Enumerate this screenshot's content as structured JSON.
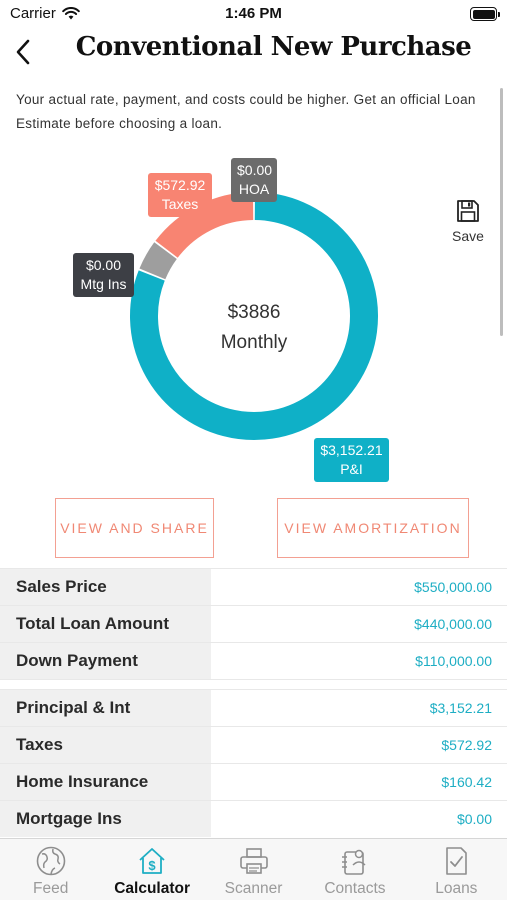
{
  "status": {
    "carrier": "Carrier",
    "time": "1:46 PM"
  },
  "header": {
    "title": "Conventional New Purchase"
  },
  "disclaimer": "Your actual rate, payment, and costs could be higher. Get an official Loan Estimate before choosing a loan.",
  "chart_data": {
    "type": "pie",
    "style": "donut",
    "center_amount": "$3886",
    "center_label": "Monthly",
    "slices": [
      {
        "name": "P&I",
        "value": 3152.21,
        "display": "$3,152.21",
        "color": "#0fb0c7"
      },
      {
        "name": "Taxes",
        "value": 572.92,
        "display": "$572.92",
        "color": "#f88472"
      },
      {
        "name": "HOA",
        "value": 0.0,
        "display": "$0.00",
        "color": "#6b6b6b"
      },
      {
        "name": "Mtg Ins",
        "value": 0.0,
        "display": "$0.00",
        "color": "#3d3f45"
      },
      {
        "name": "Home Insurance",
        "value": 160.42,
        "color": "#9e9e9e"
      }
    ]
  },
  "save_label": "Save",
  "buttons": {
    "share": "VIEW AND SHARE",
    "amortization": "VIEW AMORTIZATION"
  },
  "table": {
    "group1": [
      {
        "label": "Sales Price",
        "value": "$550,000.00"
      },
      {
        "label": "Total Loan Amount",
        "value": "$440,000.00"
      },
      {
        "label": "Down Payment",
        "value": "$110,000.00"
      }
    ],
    "group2": [
      {
        "label": "Principal & Int",
        "value": "$3,152.21"
      },
      {
        "label": "Taxes",
        "value": "$572.92"
      },
      {
        "label": "Home Insurance",
        "value": "$160.42"
      },
      {
        "label": "Mortgage Ins",
        "value": "$0.00"
      }
    ]
  },
  "tabs": [
    {
      "label": "Feed",
      "icon": "globe-icon",
      "active": false
    },
    {
      "label": "Calculator",
      "icon": "house-dollar-icon",
      "active": true
    },
    {
      "label": "Scanner",
      "icon": "printer-icon",
      "active": false
    },
    {
      "label": "Contacts",
      "icon": "contacts-icon",
      "active": false
    },
    {
      "label": "Loans",
      "icon": "document-check-icon",
      "active": false
    }
  ]
}
